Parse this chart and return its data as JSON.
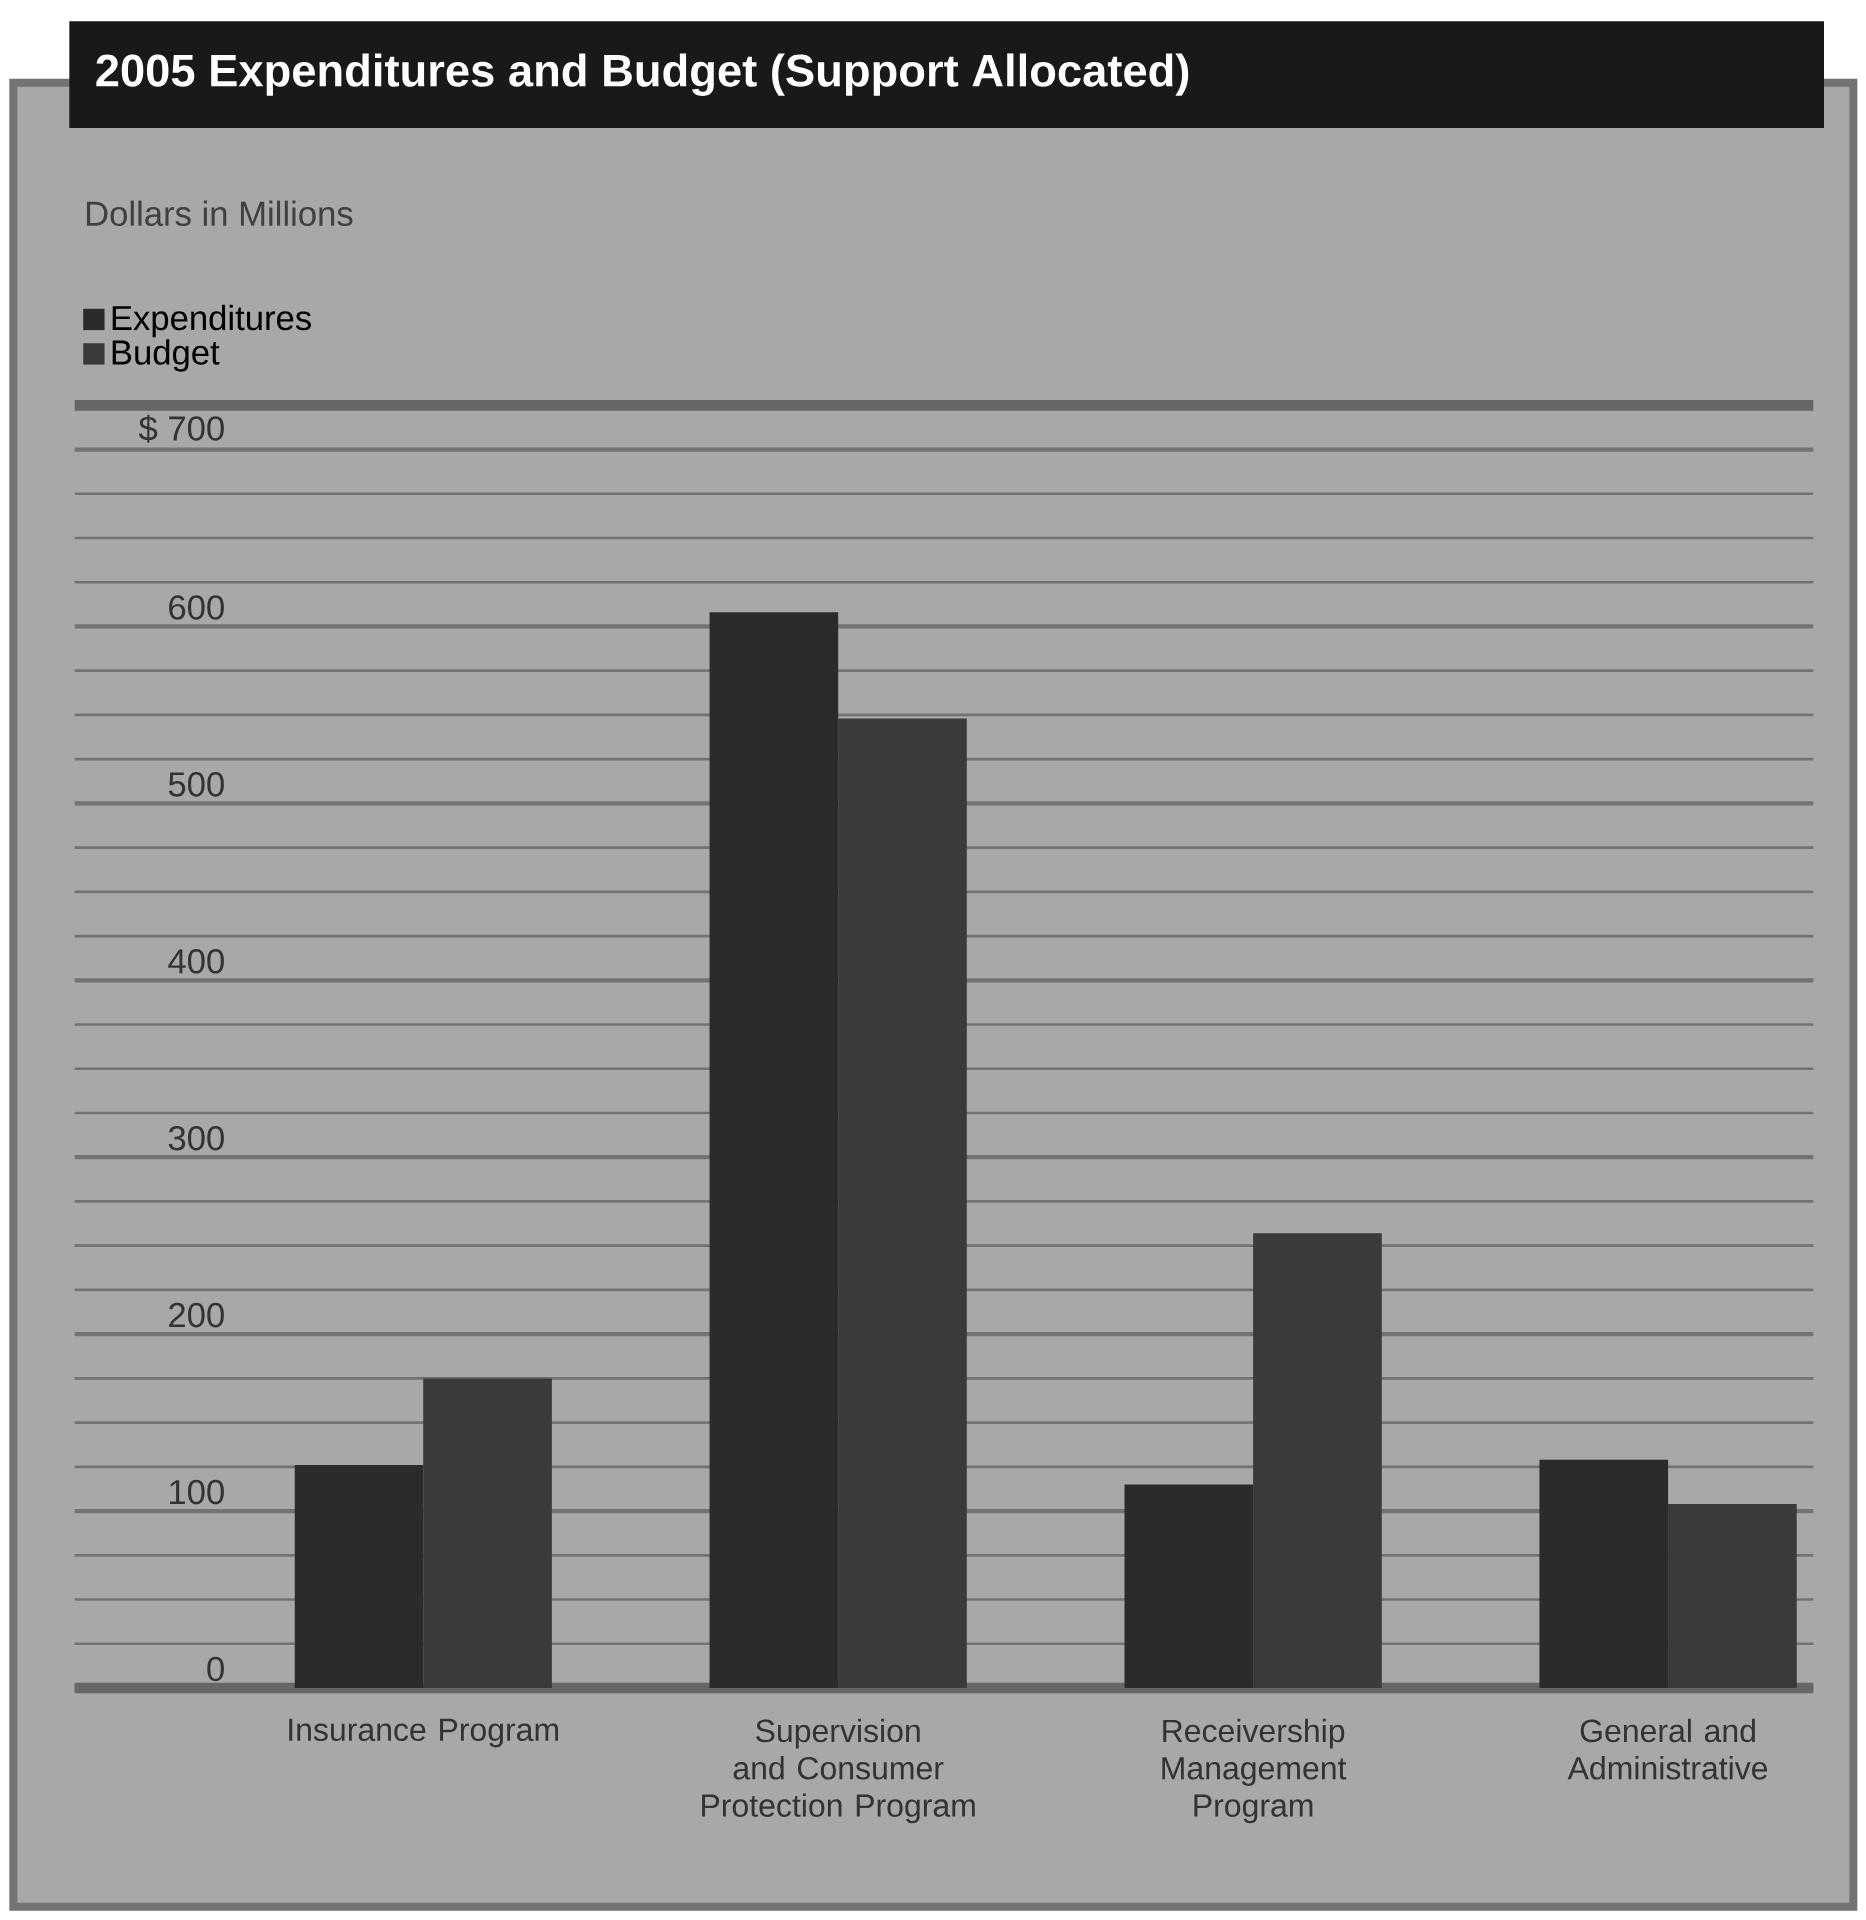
{
  "chart_data": {
    "type": "bar",
    "title": "2005 Expenditures and Budget (Support Allocated)",
    "annotations": [
      "Dollars in Millions"
    ],
    "categories": [
      "Insurance Program",
      "Supervision and Consumer Protection Program",
      "Receivership Management Program",
      "General and Administrative"
    ],
    "series": [
      {
        "name": "Expenditures",
        "color": "#2b2b2b",
        "values": [
          126,
          608,
          115,
          129
        ]
      },
      {
        "name": "Budget",
        "color": "#3a3a3a",
        "values": [
          175,
          548,
          257,
          104
        ]
      }
    ],
    "ylim": [
      0,
      725
    ],
    "yticks": [
      0,
      100,
      200,
      300,
      400,
      500,
      600,
      {
        "value": 700,
        "label": "$ 700"
      }
    ],
    "grid": "y",
    "legend": "top left"
  }
}
